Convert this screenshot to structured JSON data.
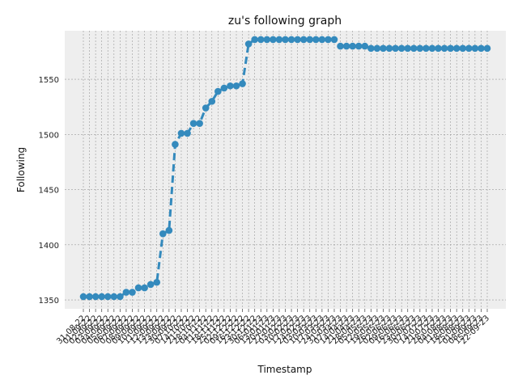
{
  "chart_data": {
    "type": "line",
    "title": "zu's following graph",
    "xlabel": "Timestamp",
    "ylabel": "Following",
    "ylim": [
      1342,
      1594
    ],
    "yticks": [
      1350,
      1400,
      1450,
      1500,
      1550
    ],
    "grid": true,
    "line_color": "#348abd",
    "plot_background": "#eeeeee",
    "x": [
      "31-08-22",
      "01-09-22",
      "02-09-22",
      "03-09-22",
      "04-09-22",
      "05-09-22",
      "06-09-22",
      "07-09-22",
      "08-09-22",
      "09-09-22",
      "10-09-22",
      "11-09-22",
      "12-09-22",
      "13-09-22",
      "23-09-22",
      "30-09-22",
      "07-10-22",
      "14-10-22",
      "21-10-22",
      "28-10-22",
      "04-11-22",
      "11-11-22",
      "18-11-22",
      "25-11-22",
      "02-12-22",
      "09-12-22",
      "16-12-22",
      "23-12-22",
      "30-12-22",
      "06-01-23",
      "13-01-23",
      "20-01-23",
      "27-01-23",
      "03-02-23",
      "10-02-23",
      "17-02-23",
      "24-02-23",
      "03-03-23",
      "10-03-23",
      "17-03-23",
      "24-03-23",
      "31-03-23",
      "07-04-23",
      "14-04-23",
      "21-04-23",
      "28-04-23",
      "05-05-23",
      "12-05-23",
      "19-05-23",
      "26-05-23",
      "02-06-23",
      "09-06-23",
      "16-06-23",
      "23-06-23",
      "30-06-23",
      "07-07-23",
      "14-07-23",
      "21-07-23",
      "28-07-23",
      "04-08-23",
      "11-08-23",
      "18-08-23",
      "25-08-23",
      "01-09-23",
      "08-09-23",
      "15-09-23",
      "22-09-23"
    ],
    "tick_labels": [
      "31-08-22",
      "01-09-22",
      "02-09-22",
      "03-09-22",
      "04-09-22",
      "05-09-22",
      "06-09-22",
      "07-09-22",
      "08-09-22",
      "09-09-22",
      "10-09-22",
      "11-09-22",
      "12-09-22",
      "13-09-22",
      "23-09-22",
      "30-09-22",
      "07-10-22",
      "14-10-22",
      "21-10-22",
      "28-10-22",
      "04-11-22",
      "11-11-22",
      "18-11-22",
      "25-11-22",
      "02-12-22",
      "09-12-22",
      "16-12-22",
      "23-12-22",
      "30-12-22",
      "06-01-23",
      "13-01-23",
      "20-01-23",
      "27-01-23",
      "03-02-23",
      "10-02-23",
      "17-02-23",
      "24-02-23",
      "03-03-23",
      "10-03-23",
      "17-03-23",
      "24-03-23",
      "31-03-23",
      "07-04-23",
      "14-04-23",
      "21-04-23",
      "28-04-23",
      "05-05-23",
      "12-05-23",
      "19-05-23",
      "26-05-23",
      "02-06-23",
      "09-06-23",
      "16-06-23",
      "23-06-23",
      "30-06-23",
      "07-07-23",
      "14-07-23",
      "21-07-23",
      "28-07-23",
      "04-08-23",
      "11-08-23",
      "18-08-23",
      "25-08-23",
      "01-09-23",
      "08-09-23",
      "15-09-23",
      "22-09-23"
    ],
    "values": [
      1353,
      1353,
      1353,
      1353,
      1353,
      1353,
      1353,
      1357,
      1357,
      1361,
      1361,
      1364,
      1366,
      1410,
      1413,
      1491,
      1501,
      1501,
      1510,
      1510,
      1524,
      1530,
      1539,
      1542,
      1544,
      1544,
      1546,
      1582,
      1586,
      1586,
      1586,
      1586,
      1586,
      1586,
      1586,
      1586,
      1586,
      1586,
      1586,
      1586,
      1586,
      1586,
      1580,
      1580,
      1580,
      1580,
      1580,
      1578,
      1578,
      1578,
      1578,
      1578,
      1578,
      1578,
      1578,
      1578,
      1578,
      1578,
      1578,
      1578,
      1578,
      1578,
      1578,
      1578,
      1578,
      1578,
      1578
    ]
  }
}
